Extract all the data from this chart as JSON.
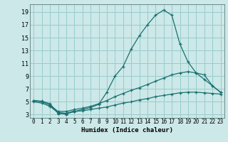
{
  "title": "",
  "xlabel": "Humidex (Indice chaleur)",
  "ylabel": "",
  "bg_color": "#cce8e8",
  "grid_color": "#99cccc",
  "line_color": "#1a7070",
  "xlim": [
    -0.5,
    23.5
  ],
  "ylim": [
    2.5,
    20.2
  ],
  "xticks": [
    0,
    1,
    2,
    3,
    4,
    5,
    6,
    7,
    8,
    9,
    10,
    11,
    12,
    13,
    14,
    15,
    16,
    17,
    18,
    19,
    20,
    21,
    22,
    23
  ],
  "yticks": [
    3,
    5,
    7,
    9,
    11,
    13,
    15,
    17,
    19
  ],
  "curve1_x": [
    0,
    1,
    2,
    3,
    4,
    5,
    6,
    7,
    8,
    9,
    10,
    11,
    12,
    13,
    14,
    15,
    16,
    17,
    18,
    19,
    20,
    21,
    22,
    23
  ],
  "curve1_y": [
    5.2,
    5.1,
    4.7,
    3.2,
    3.1,
    3.5,
    3.8,
    4.1,
    4.6,
    6.5,
    9.0,
    10.5,
    13.2,
    15.3,
    17.0,
    18.5,
    19.3,
    18.5,
    14.0,
    11.2,
    9.5,
    9.2,
    7.5,
    6.5
  ],
  "curve2_x": [
    0,
    1,
    2,
    3,
    4,
    5,
    6,
    7,
    8,
    9,
    10,
    11,
    12,
    13,
    14,
    15,
    16,
    17,
    18,
    19,
    20,
    21,
    22,
    23
  ],
  "curve2_y": [
    5.2,
    5.0,
    4.5,
    3.5,
    3.5,
    3.8,
    4.0,
    4.3,
    4.7,
    5.2,
    5.8,
    6.3,
    6.8,
    7.2,
    7.7,
    8.2,
    8.7,
    9.2,
    9.5,
    9.7,
    9.5,
    8.5,
    7.5,
    6.5
  ],
  "curve3_x": [
    0,
    1,
    2,
    3,
    4,
    5,
    6,
    7,
    8,
    9,
    10,
    11,
    12,
    13,
    14,
    15,
    16,
    17,
    18,
    19,
    20,
    21,
    22,
    23
  ],
  "curve3_y": [
    5.0,
    4.8,
    4.3,
    3.3,
    3.2,
    3.5,
    3.6,
    3.8,
    4.0,
    4.2,
    4.5,
    4.8,
    5.0,
    5.3,
    5.5,
    5.8,
    6.0,
    6.2,
    6.4,
    6.5,
    6.5,
    6.4,
    6.3,
    6.2
  ],
  "curve4_x": [
    2,
    3,
    4,
    5
  ],
  "curve4_y": [
    4.5,
    3.3,
    3.2,
    3.6
  ],
  "xlabel_fontsize": 6.5,
  "tick_fontsize": 5.5
}
